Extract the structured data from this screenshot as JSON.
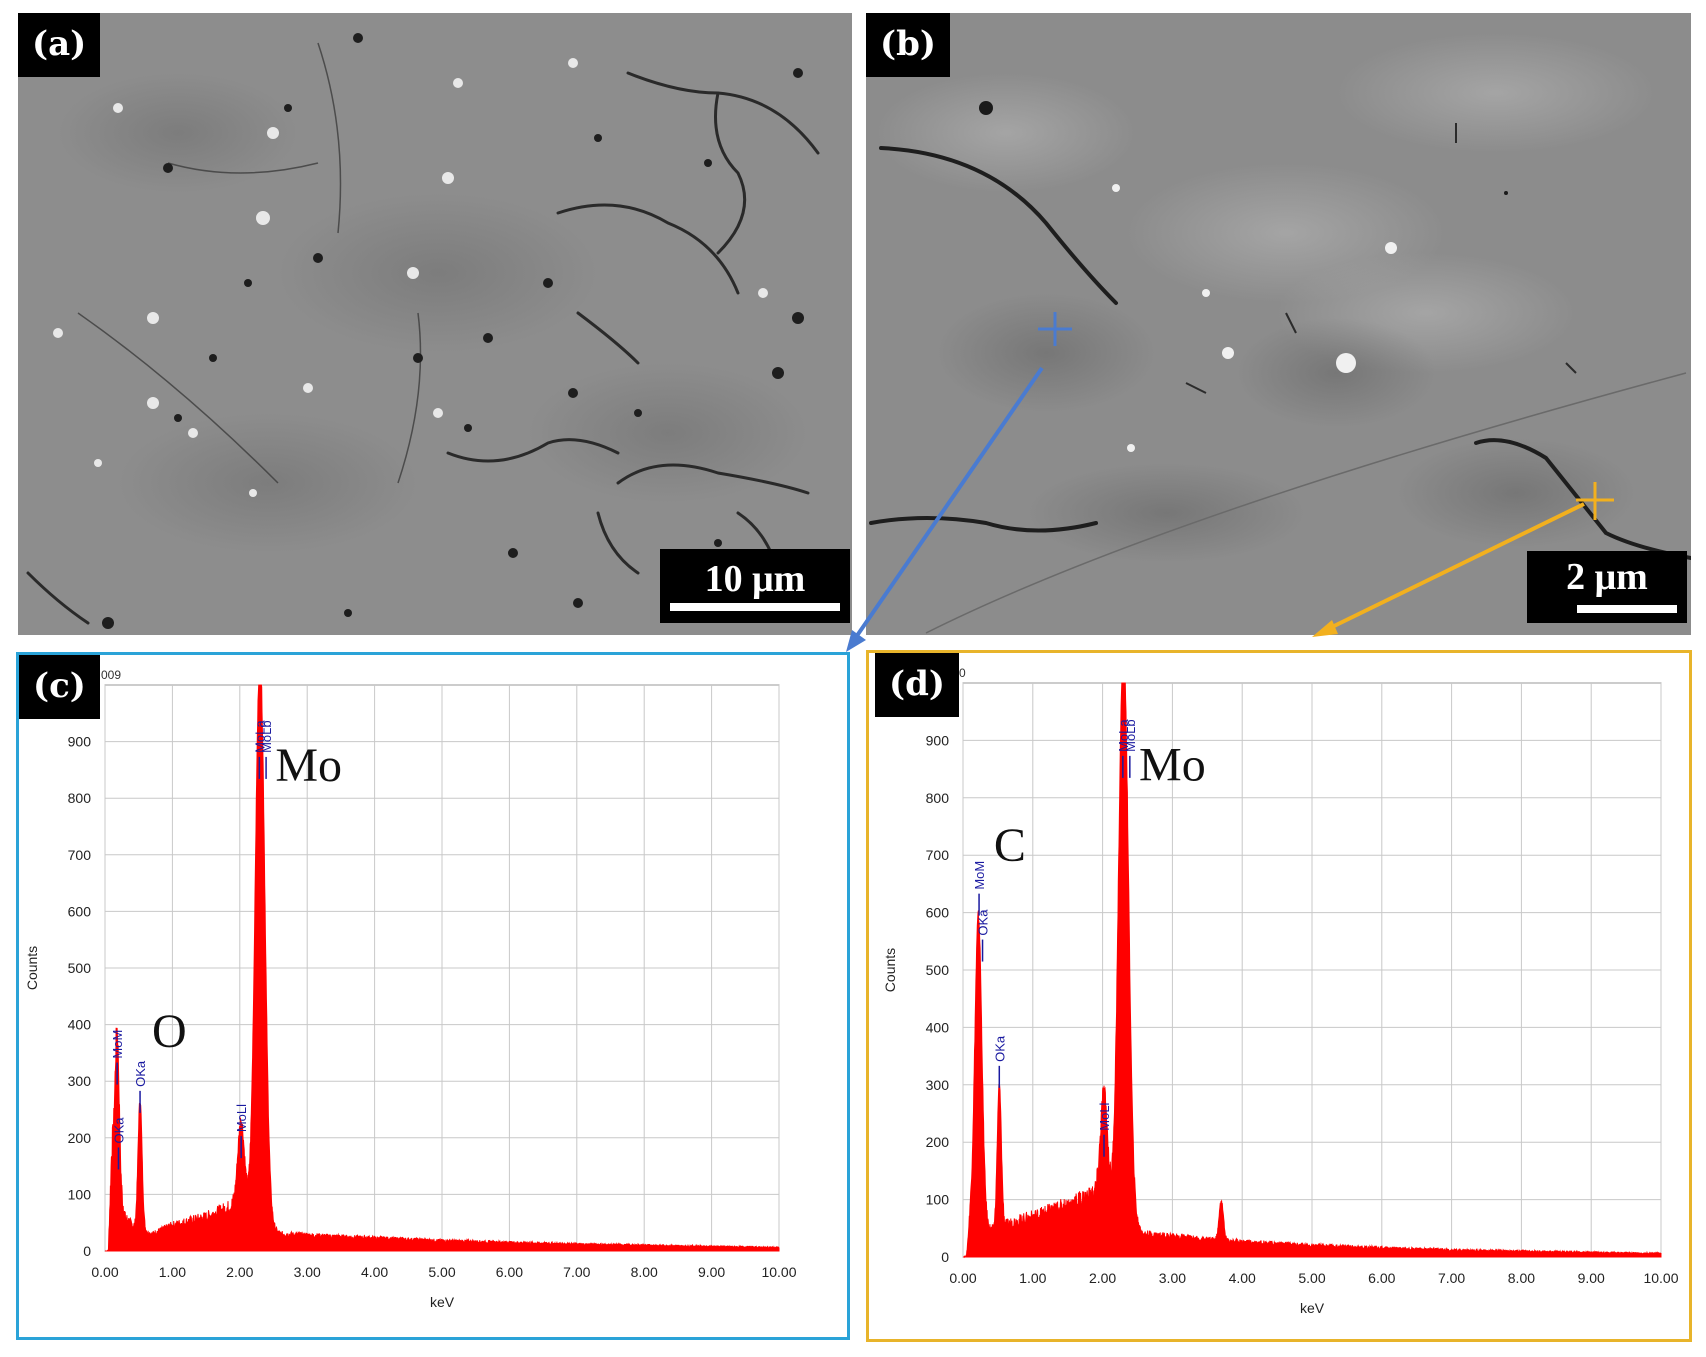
{
  "panels": {
    "a": {
      "label": "(a)",
      "scale_text": "10 μm"
    },
    "b": {
      "label": "(b)",
      "scale_text": "2 μm"
    },
    "c": {
      "label": "(c)"
    },
    "d": {
      "label": "(d)"
    }
  },
  "colors": {
    "blue_marker": "#4a7bd0",
    "orange_marker": "#f2b01e",
    "frame_c": "#2aa3d8",
    "frame_d": "#e8b42a",
    "spectrum": "#ff0000",
    "peak_label": "#1a1aa0"
  },
  "chart_data": [
    {
      "type": "area",
      "panel": "c",
      "header_fragment": "009",
      "xlabel": "keV",
      "ylabel": "Counts",
      "xlim": [
        0,
        10
      ],
      "ylim": [
        0,
        1000
      ],
      "x_ticks": [
        "0.00",
        "1.00",
        "2.00",
        "3.00",
        "4.00",
        "5.00",
        "6.00",
        "7.00",
        "8.00",
        "9.00",
        "10.00"
      ],
      "y_ticks": [
        "0",
        "100",
        "200",
        "300",
        "400",
        "500",
        "600",
        "700",
        "800",
        "900"
      ],
      "grid": true,
      "element_labels": [
        {
          "text": "O",
          "x": 0.52,
          "y": 360
        },
        {
          "text": "Mo",
          "x": 2.35,
          "y": 830
        }
      ],
      "peak_markers": [
        {
          "text": "MoM",
          "x": 0.18,
          "y": 340
        },
        {
          "text": "OKa",
          "x": 0.2,
          "y": 190
        },
        {
          "text": "OKa",
          "x": 0.52,
          "y": 290
        },
        {
          "text": "MoLl",
          "x": 2.02,
          "y": 210
        },
        {
          "text": "MoLa",
          "x": 2.29,
          "y": 880
        },
        {
          "text": "MoLb",
          "x": 2.39,
          "y": 880
        }
      ],
      "peaks": [
        {
          "x": 0.18,
          "counts": 260,
          "width": 0.03
        },
        {
          "x": 0.52,
          "counts": 230,
          "width": 0.03
        },
        {
          "x": 2.02,
          "counts": 160,
          "width": 0.05
        },
        {
          "x": 2.3,
          "counts": 1000,
          "width": 0.07
        }
      ],
      "background": [
        [
          0.05,
          0
        ],
        [
          0.1,
          180
        ],
        [
          0.3,
          60
        ],
        [
          0.45,
          40
        ],
        [
          0.7,
          30
        ],
        [
          1.0,
          45
        ],
        [
          1.5,
          60
        ],
        [
          1.9,
          80
        ],
        [
          2.6,
          30
        ],
        [
          3.5,
          25
        ],
        [
          5.0,
          18
        ],
        [
          7.0,
          12
        ],
        [
          9.0,
          8
        ],
        [
          10.0,
          6
        ]
      ]
    },
    {
      "type": "area",
      "panel": "d",
      "header_fragment": "0",
      "xlabel": "keV",
      "ylabel": "Counts",
      "xlim": [
        0,
        10
      ],
      "ylim": [
        0,
        1000
      ],
      "x_ticks": [
        "0.00",
        "1.00",
        "2.00",
        "3.00",
        "4.00",
        "5.00",
        "6.00",
        "7.00",
        "8.00",
        "9.00",
        "10.00"
      ],
      "y_ticks": [
        "0",
        "100",
        "200",
        "300",
        "400",
        "500",
        "600",
        "700",
        "800",
        "900"
      ],
      "grid": true,
      "element_labels": [
        {
          "text": "C",
          "x": 0.27,
          "y": 690
        },
        {
          "text": "Mo",
          "x": 2.35,
          "y": 830
        }
      ],
      "peak_markers": [
        {
          "text": "MoM",
          "x": 0.23,
          "y": 640
        },
        {
          "text": "OKa",
          "x": 0.28,
          "y": 560
        },
        {
          "text": "OKa",
          "x": 0.52,
          "y": 340
        },
        {
          "text": "MoLl",
          "x": 2.02,
          "y": 220
        },
        {
          "text": "MoLa",
          "x": 2.29,
          "y": 880
        },
        {
          "text": "MoLb",
          "x": 2.39,
          "y": 880
        }
      ],
      "peaks": [
        {
          "x": 0.22,
          "counts": 540,
          "width": 0.05
        },
        {
          "x": 0.52,
          "counts": 250,
          "width": 0.03
        },
        {
          "x": 2.02,
          "counts": 190,
          "width": 0.05
        },
        {
          "x": 2.3,
          "counts": 1000,
          "width": 0.07
        },
        {
          "x": 3.7,
          "counts": 70,
          "width": 0.03
        }
      ],
      "background": [
        [
          0.05,
          0
        ],
        [
          0.1,
          60
        ],
        [
          0.35,
          50
        ],
        [
          0.45,
          45
        ],
        [
          0.7,
          60
        ],
        [
          1.0,
          70
        ],
        [
          1.5,
          90
        ],
        [
          1.9,
          110
        ],
        [
          2.6,
          40
        ],
        [
          3.5,
          30
        ],
        [
          5.0,
          20
        ],
        [
          7.0,
          12
        ],
        [
          9.0,
          8
        ],
        [
          10.0,
          6
        ]
      ]
    }
  ]
}
